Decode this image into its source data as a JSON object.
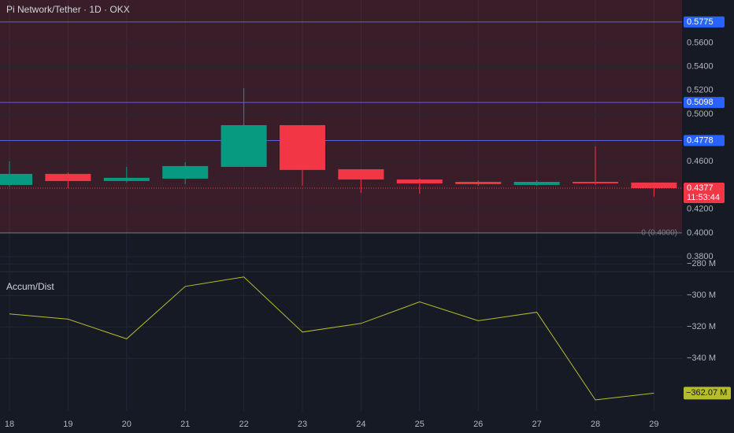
{
  "chart_data": [
    {
      "type": "candlestick",
      "title": "Pi Network/Tether · 1D · OKX",
      "categories": [
        "18",
        "19",
        "20",
        "21",
        "22",
        "23",
        "24",
        "25",
        "26",
        "27",
        "28",
        "29"
      ],
      "open": [
        0.4404,
        0.4497,
        0.4437,
        0.4457,
        0.4556,
        0.4907,
        0.4536,
        0.445,
        0.443,
        0.4404,
        0.443,
        0.4424
      ],
      "high": [
        0.4603,
        0.451,
        0.4556,
        0.4596,
        0.5219,
        0.4907,
        0.4536,
        0.4457,
        0.4443,
        0.4443,
        0.4728,
        0.4424
      ],
      "low": [
        0.439,
        0.4377,
        0.4424,
        0.4411,
        0.4556,
        0.4397,
        0.4338,
        0.4331,
        0.4397,
        0.4397,
        0.4404,
        0.4305
      ],
      "close": [
        0.4497,
        0.4437,
        0.4464,
        0.4563,
        0.4907,
        0.453,
        0.445,
        0.4417,
        0.4411,
        0.443,
        0.4417,
        0.4377
      ],
      "up_color": "#089981",
      "down_color": "#f23645",
      "ylim": [
        0.3675,
        0.596
      ],
      "yticks": [
        {
          "value": 0.38,
          "label": "0.3800"
        },
        {
          "value": 0.4,
          "label": "0.4000"
        },
        {
          "value": 0.42,
          "label": "0.4200"
        },
        {
          "value": 0.46,
          "label": "0.4600"
        },
        {
          "value": 0.5,
          "label": "0.5000"
        },
        {
          "value": 0.52,
          "label": "0.5200"
        },
        {
          "value": 0.54,
          "label": "0.5400"
        },
        {
          "value": 0.56,
          "label": "0.5600"
        }
      ],
      "price_lines": [
        0.5775,
        0.5098,
        0.4778
      ],
      "price_line_color": "#5b5fd6",
      "last_price": 0.4377,
      "countdown": "11:53:44",
      "baseline": {
        "value": 0.4,
        "label": "0 (0.4000)"
      },
      "grid": true
    },
    {
      "type": "line",
      "title": "Accum/Dist",
      "series": [
        {
          "name": "Accum/Dist",
          "color": "#b5bd2c",
          "values": [
            -311.8,
            -315.1,
            -327.6,
            -294.3,
            -288.3,
            -323.3,
            -317.8,
            -304.1,
            -316.1,
            -310.7,
            -366.4,
            -362.07
          ],
          "value_labels": [
            null,
            null,
            null,
            null,
            null,
            null,
            null,
            null,
            null,
            null,
            null,
            "−362.07 M"
          ]
        }
      ],
      "ylim": [
        -373.4,
        -284.9
      ],
      "yticks": [
        {
          "value": -280,
          "label": "−280 M"
        },
        {
          "value": -300,
          "label": "−300 M"
        },
        {
          "value": -320,
          "label": "−320 M"
        },
        {
          "value": -340,
          "label": "−340 M"
        }
      ],
      "grid": true
    }
  ]
}
